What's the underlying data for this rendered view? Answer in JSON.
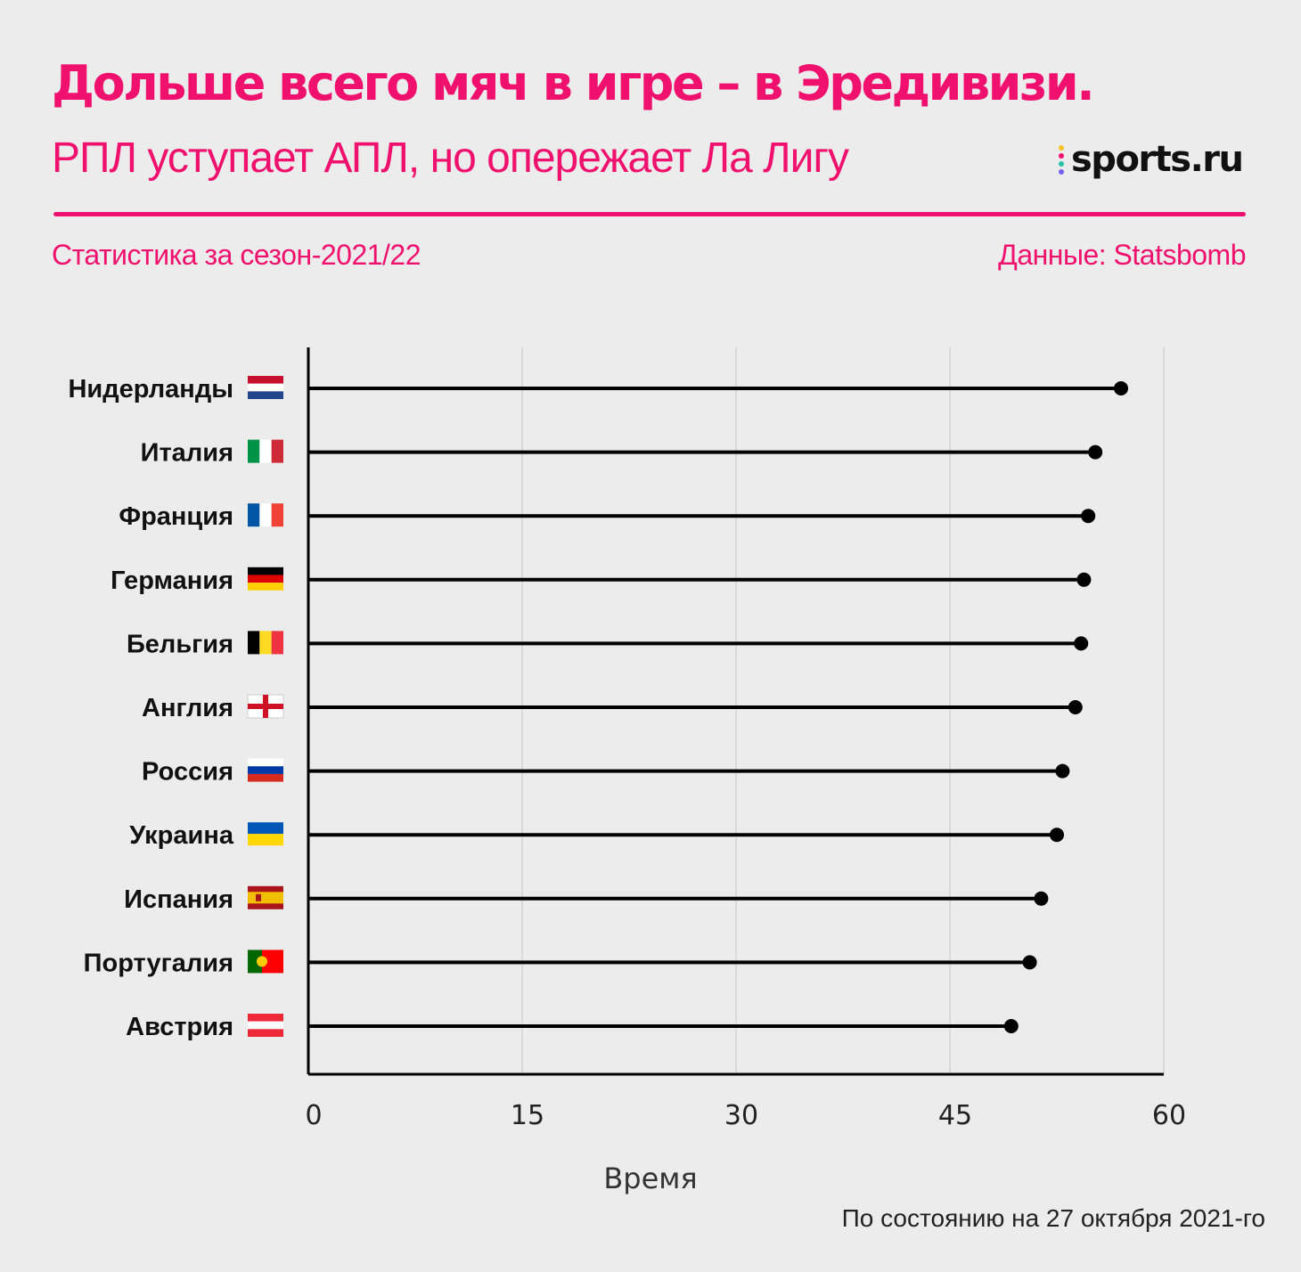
{
  "header": {
    "title": "Дольше всего мяч в игре – в Эредивизи.",
    "subtitle": "РПЛ уступает АПЛ, но опережает Ла Лигу",
    "logo": "sports.ru",
    "period": "Статистика за сезон-2021/22",
    "source": "Данные: Statsbomb"
  },
  "footnote": "По состоянию на 27 октября 2021-го",
  "colors": {
    "accent": "#f0116e",
    "background": "#ececec",
    "bar": "#000000",
    "grid": "#d9d9d9"
  },
  "chart_data": {
    "type": "lollipop",
    "xlabel": "Время",
    "xlim": [
      0,
      60
    ],
    "xticks": [
      "0",
      "15",
      "30",
      "45",
      "60"
    ],
    "grid": true,
    "categories": [
      "Нидерланды",
      "Италия",
      "Франция",
      "Германия",
      "Бельгия",
      "Англия",
      "Россия",
      "Украина",
      "Испания",
      "Португалия",
      "Австрия"
    ],
    "flags": [
      "netherlands-flag",
      "italy-flag",
      "france-flag",
      "germany-flag",
      "belgium-flag",
      "england-flag",
      "russia-flag",
      "ukraine-flag",
      "spain-flag",
      "portugal-flag",
      "austria-flag"
    ],
    "values": [
      57.0,
      55.2,
      54.7,
      54.4,
      54.2,
      53.8,
      52.9,
      52.5,
      51.4,
      50.6,
      49.3
    ]
  }
}
